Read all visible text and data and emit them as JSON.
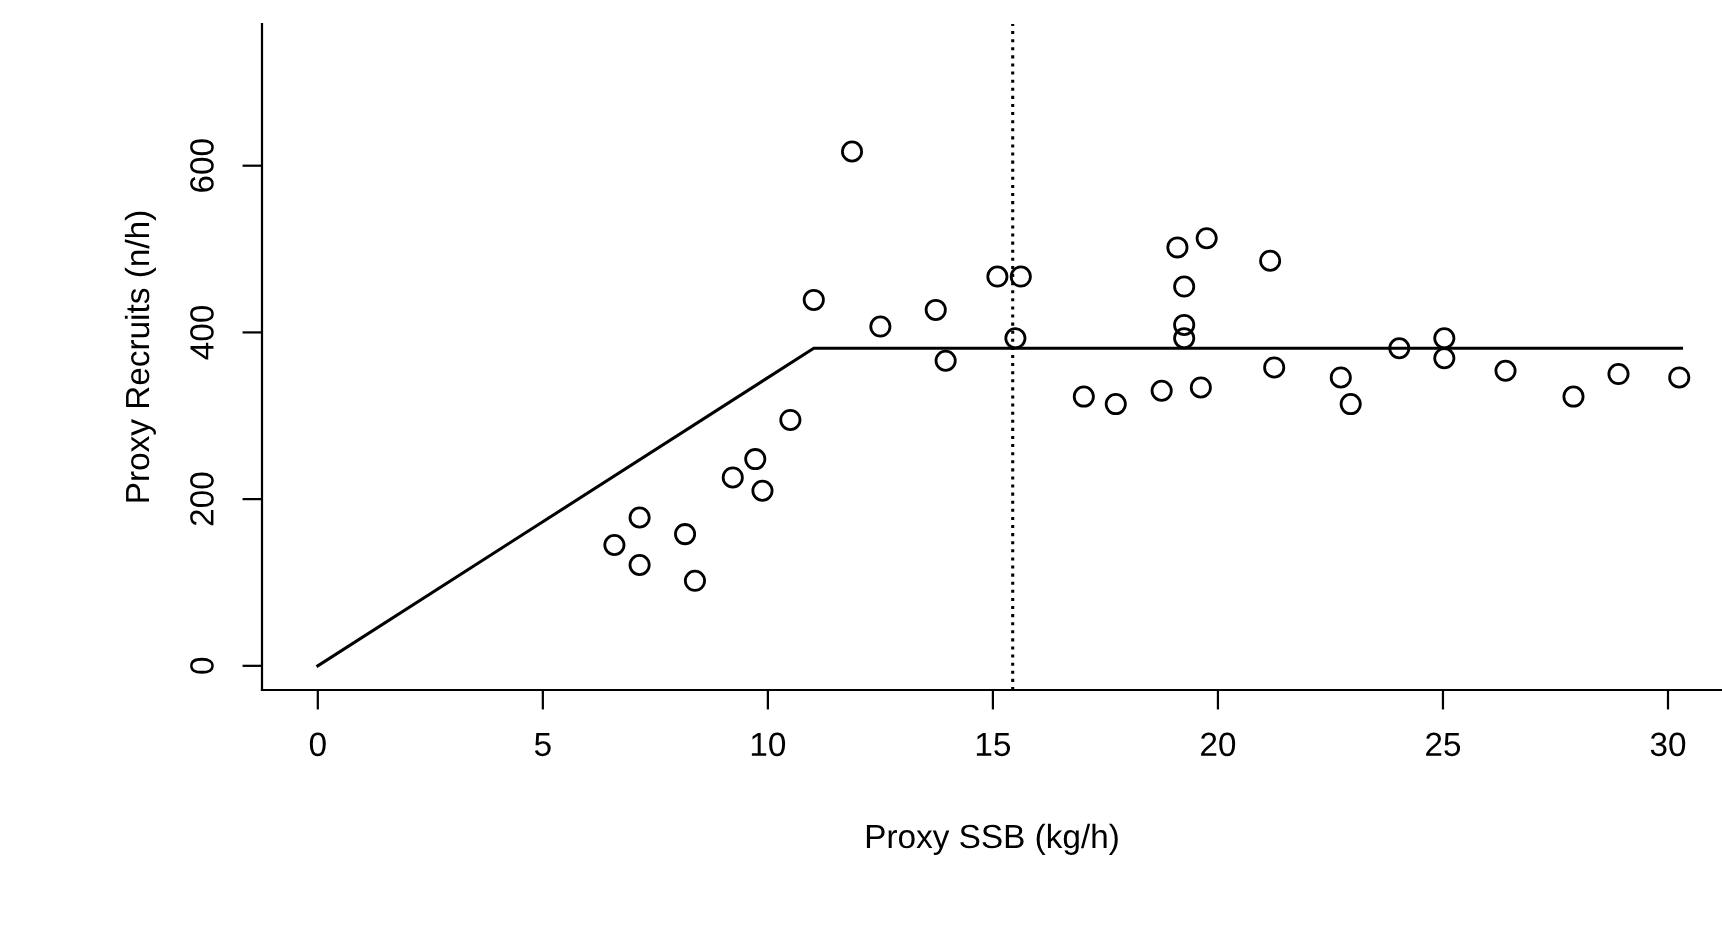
{
  "chart_data": {
    "type": "scatter",
    "xlabel": "Proxy SSB (kg/h)",
    "ylabel": "Proxy Recruits (n/h)",
    "xlim": [
      -1.24,
      31.2
    ],
    "ylim": [
      -29,
      770
    ],
    "xticks": [
      0,
      5,
      10,
      15,
      20,
      25,
      30
    ],
    "yticks": [
      0,
      200,
      400,
      600
    ],
    "marker": "circle",
    "grid": false,
    "legend": false,
    "series": [
      {
        "color": "#000000",
        "x": [
          11.87,
          11.02,
          12.5,
          13.73,
          13.95,
          10.5,
          9.72,
          9.22,
          9.88,
          7.15,
          8.16,
          6.59,
          7.15,
          8.38,
          15.1,
          15.62,
          15.5,
          19.1,
          19.75,
          19.25,
          19.25,
          19.25,
          21.16,
          17.02,
          17.73,
          18.75,
          19.62,
          21.25,
          22.73,
          22.95,
          24.03,
          25.03,
          25.03,
          26.39,
          27.9,
          28.9,
          30.25
        ],
        "values": [
          617,
          439,
          407,
          427,
          366,
          295,
          248,
          226,
          210,
          178,
          158,
          145,
          121,
          102,
          467,
          467,
          393,
          502,
          513,
          455,
          409,
          393,
          486,
          323,
          314,
          330,
          334,
          358,
          346,
          314,
          381,
          393,
          369,
          354,
          323,
          350,
          346
        ]
      },
      {
        "type": "line",
        "color": "#000000",
        "marker": "none",
        "line_style": "solid",
        "x": [
          0,
          11.02,
          30.3
        ],
        "values": [
          0,
          381,
          381
        ]
      }
    ],
    "ref_lines": [
      {
        "axis": "x",
        "value": 15.44,
        "label": null,
        "color": "#000000",
        "line_style": "dotted"
      }
    ]
  }
}
